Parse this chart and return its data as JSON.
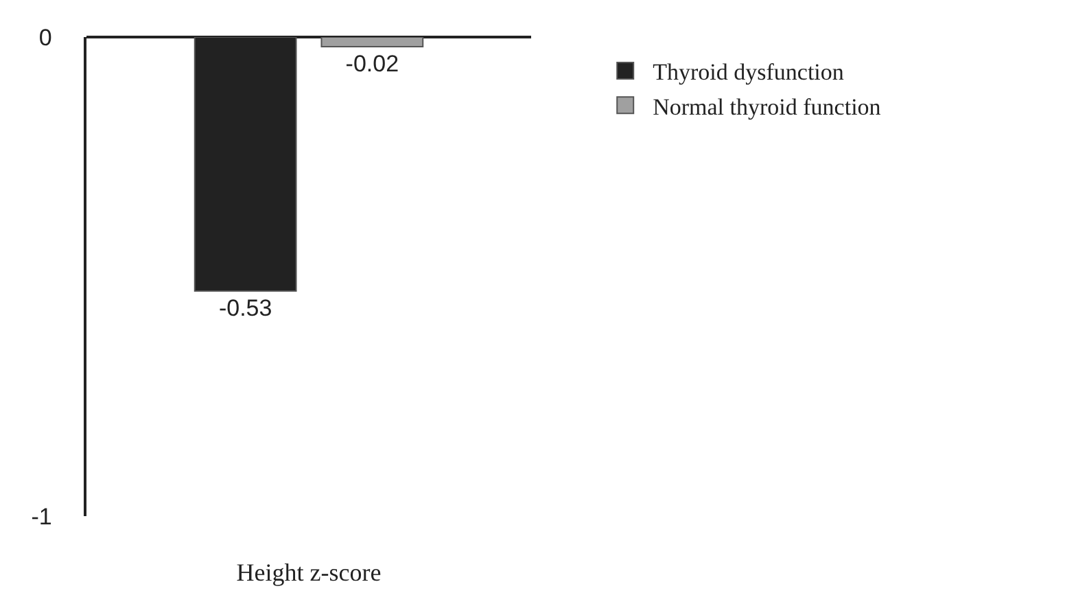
{
  "chart_data": {
    "type": "bar",
    "categories": [
      "Height z-score"
    ],
    "series": [
      {
        "name": "Thyroid dysfunction",
        "color": "#222222",
        "values": [
          -0.53
        ]
      },
      {
        "name": "Normal thyroid function",
        "color": "#a0a0a0",
        "values": [
          -0.02
        ]
      }
    ],
    "ylim": [
      -1,
      0
    ],
    "yticks": [
      -1,
      0
    ],
    "data_labels": true,
    "legend": "top right"
  }
}
